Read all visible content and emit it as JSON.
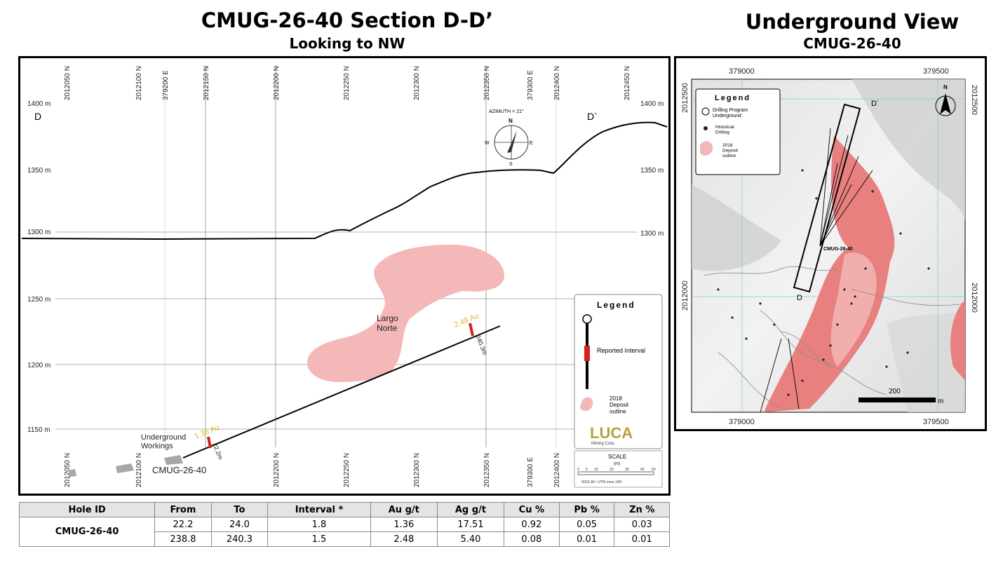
{
  "section": {
    "title": "CMUG-26-40 Section D-D’",
    "subtitle": "Looking to NW",
    "elevations_left": [
      "1400 m",
      "1350 m",
      "1300 m",
      "1250 m",
      "1200 m",
      "1150 m"
    ],
    "elevations_right": [
      "1400 m",
      "1350 m",
      "1300 m"
    ],
    "top_ticks": [
      "2012050 N",
      "2012100 N",
      "379200 E",
      "2012150 N",
      "2012200 N",
      "2012250 N",
      "2012300 N",
      "2012350 N",
      "379300 E",
      "2012400 N",
      "2012450 N"
    ],
    "bottom_ticks": [
      "2012050 N",
      "2012100 N",
      "2012200 N",
      "2012250 N",
      "2012300 N",
      "2012350 N",
      "379300 E",
      "2012400 N"
    ],
    "label_D": "D",
    "label_D_prime": "D´",
    "azimuth": "AZIMUTH = 21°",
    "compass": {
      "n": "N",
      "s": "S",
      "e": "E",
      "w": "W"
    },
    "deposit_name": "Largo\nNorte",
    "underground_label": "Underground\nWorkings",
    "hole_label": "CMUG-26-40",
    "intercept1_grade": "1.36 Au",
    "intercept1_depth": "22.2m",
    "intercept2_grade": "2.48 Au",
    "intercept2_depth": "240.3m",
    "legend": {
      "title": "Legend",
      "reported_interval": "Reported Interval",
      "deposit": "2018\nDeposit\noutline",
      "logo": "LUCA",
      "logo_sub": "Mining Corp.",
      "scale_title": "SCALE",
      "scale_unit": "(m)",
      "scale_ticks": [
        "0",
        "5",
        "10",
        "20",
        "30",
        "40",
        "50"
      ],
      "datum": "WGS 84 • UTM zone 14N"
    }
  },
  "underground": {
    "title": "Underground View",
    "subtitle": "CMUG-26-40",
    "coords_top": [
      "379000",
      "379500"
    ],
    "coords_bottom": [
      "379000",
      "379500"
    ],
    "coords_left": [
      "2012500",
      "2012000"
    ],
    "coords_right": [
      "2012500",
      "2012000"
    ],
    "legend": {
      "title": "Legend",
      "drilling": "Drilling Program\nUnderground",
      "historical": "Historical\nDrilling",
      "deposit": "2018\nDeposit\noutline"
    },
    "hole_label": "CMUG-26-40",
    "label_D": "D",
    "label_D_prime": "D´",
    "north": "N",
    "scale_value": "200",
    "scale_unit": "m"
  },
  "table": {
    "headers": [
      "Hole ID",
      "From",
      "To",
      "Interval *",
      "Au g/t",
      "Ag g/t",
      "Cu %",
      "Pb %",
      "Zn %"
    ],
    "hole_id": "CMUG-26-40",
    "rows": [
      [
        "22.2",
        "24.0",
        "1.8",
        "1.36",
        "17.51",
        "0.92",
        "0.05",
        "0.03"
      ],
      [
        "238.8",
        "240.3",
        "1.5",
        "2.48",
        "5.40",
        "0.08",
        "0.01",
        "0.01"
      ]
    ]
  },
  "colors": {
    "deposit_pink": "#f4b8b8",
    "deposit_pink_dark": "#e88080",
    "interval_red": "#d62020",
    "grade_yellow": "#d6b83c",
    "grid": "#8c8c8c"
  }
}
